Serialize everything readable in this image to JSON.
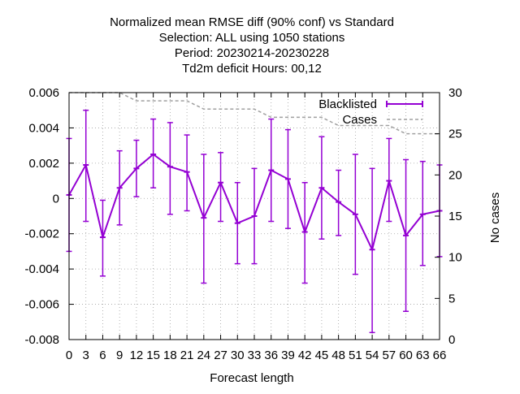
{
  "chart_data": {
    "type": "line",
    "title_lines": [
      "Normalized mean RMSE diff (90% conf) vs Standard",
      "Selection: ALL using  1050 stations",
      "Period: 20230214-20230228",
      "Td2m deficit   Hours:  00,12"
    ],
    "xlabel": "Forecast length",
    "ylabel_right": "No cases",
    "x": [
      0,
      3,
      6,
      9,
      12,
      15,
      18,
      21,
      24,
      27,
      30,
      33,
      36,
      39,
      42,
      45,
      48,
      51,
      54,
      57,
      60,
      63,
      66
    ],
    "xlim": [
      0,
      66
    ],
    "ylim": [
      -0.008,
      0.006
    ],
    "y2lim": [
      0,
      30
    ],
    "y_ticks": [
      "0.006",
      "0.004",
      "0.002",
      "0",
      "-0.002",
      "-0.004",
      "-0.006",
      "-0.008"
    ],
    "y_tick_values": [
      0.006,
      0.004,
      0.002,
      0,
      -0.002,
      -0.004,
      -0.006,
      -0.008
    ],
    "y2_ticks": [
      "30",
      "25",
      "20",
      "15",
      "10",
      "5",
      "0"
    ],
    "y2_tick_values": [
      30,
      25,
      20,
      15,
      10,
      5,
      0
    ],
    "grid": true,
    "legend_position": "top-right",
    "series": [
      {
        "name": "Blacklisted",
        "color": "#9400d3",
        "axis": "left",
        "values": [
          0.0002,
          0.0019,
          -0.0022,
          0.0006,
          0.0017,
          0.0025,
          0.0018,
          0.0015,
          -0.0011,
          0.0009,
          -0.0014,
          -0.001,
          0.0016,
          0.0011,
          -0.0019,
          0.0006,
          -0.0002,
          -0.0009,
          -0.0029,
          0.001,
          -0.0021,
          -0.0009,
          -0.0007
        ],
        "err_low": [
          -0.003,
          -0.0013,
          -0.0044,
          -0.0015,
          0.0001,
          0.0006,
          -0.0009,
          -0.0007,
          -0.0048,
          -0.0013,
          -0.0037,
          -0.0037,
          -0.0013,
          -0.0017,
          -0.0048,
          -0.0023,
          -0.0021,
          -0.0043,
          -0.0076,
          -0.0013,
          -0.0064,
          -0.0038,
          -0.0033
        ],
        "err_high": [
          0.0034,
          0.005,
          -0.0001,
          0.0027,
          0.0033,
          0.0045,
          0.0043,
          0.0036,
          0.0025,
          0.0026,
          0.0009,
          0.0017,
          0.0045,
          0.0039,
          0.0009,
          0.0035,
          0.0016,
          0.0025,
          0.0017,
          0.0034,
          0.0022,
          0.0021,
          0.0019
        ]
      },
      {
        "name": "Cases",
        "color": "#a0a0a0",
        "axis": "right",
        "values": [
          30,
          30,
          30,
          30,
          29,
          29,
          29,
          29,
          28,
          28,
          28,
          28,
          27,
          27,
          27,
          27,
          26,
          26,
          26,
          26,
          25,
          25,
          25
        ]
      }
    ]
  }
}
